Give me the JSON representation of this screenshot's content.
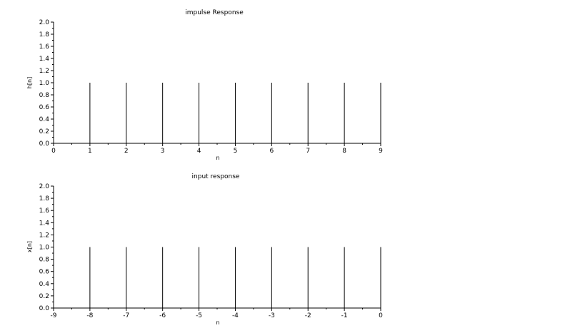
{
  "chart_data": [
    {
      "type": "stem",
      "title": "impulse Response",
      "xlabel": "n",
      "ylabel": "h[n]",
      "xlim": [
        0,
        9
      ],
      "ylim": [
        0,
        2
      ],
      "x_ticks": [
        "0",
        "1",
        "2",
        "3",
        "4",
        "5",
        "6",
        "7",
        "8",
        "9"
      ],
      "y_ticks": [
        "0.0",
        "0.2",
        "0.4",
        "0.6",
        "0.8",
        "1.0",
        "1.2",
        "1.4",
        "1.6",
        "1.8",
        "2.0"
      ],
      "x": [
        1,
        2,
        3,
        4,
        5,
        6,
        7,
        8,
        9
      ],
      "y": [
        1,
        1,
        1,
        1,
        1,
        1,
        1,
        1,
        1
      ],
      "grid": false
    },
    {
      "type": "stem",
      "title": "input response",
      "xlabel": "n",
      "ylabel": "x[n]",
      "xlim": [
        -9,
        0
      ],
      "ylim": [
        0,
        2
      ],
      "x_ticks": [
        "-9",
        "-8",
        "-7",
        "-6",
        "-5",
        "-4",
        "-3",
        "-2",
        "-1",
        "0"
      ],
      "y_ticks": [
        "0.0",
        "0.2",
        "0.4",
        "0.6",
        "0.8",
        "1.0",
        "1.2",
        "1.4",
        "1.6",
        "1.8",
        "2.0"
      ],
      "x": [
        -8,
        -7,
        -6,
        -5,
        -4,
        -3,
        -2,
        -1,
        0
      ],
      "y": [
        1,
        1,
        1,
        1,
        1,
        1,
        1,
        1,
        1
      ],
      "grid": false
    }
  ],
  "colors": {
    "stem": "#000000",
    "axis": "#000000",
    "background": "#ffffff"
  }
}
